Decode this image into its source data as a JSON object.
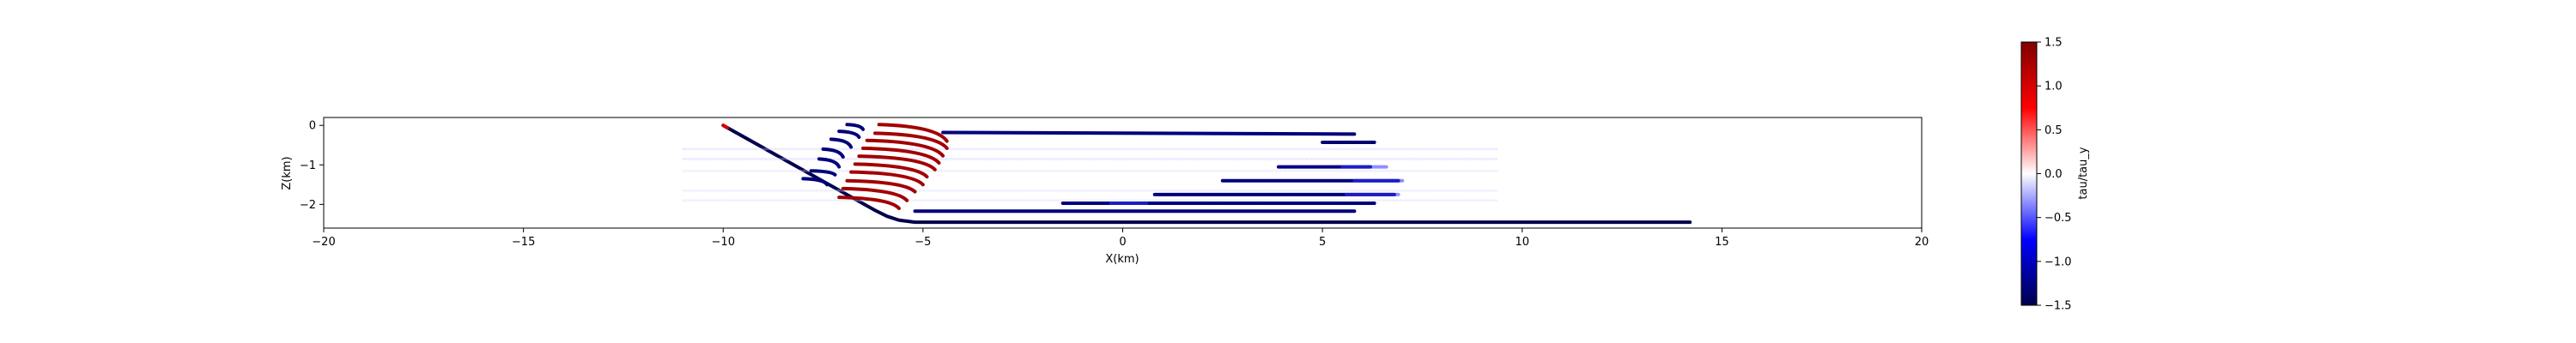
{
  "chart_data": {
    "type": "scatter",
    "title": "",
    "xlabel": "X(km)",
    "ylabel": "Z(km)",
    "xlim": [
      -20,
      20
    ],
    "ylim": [
      -2.6,
      0.2
    ],
    "xticks": [
      -20,
      -15,
      -10,
      -5,
      0,
      5,
      10,
      15,
      20
    ],
    "xtick_labels": [
      "−20",
      "−15",
      "−10",
      "−5",
      "0",
      "5",
      "10",
      "15",
      "20"
    ],
    "yticks": [
      0,
      -1,
      -2
    ],
    "ytick_labels": [
      "0",
      "−1",
      "−2"
    ],
    "grid": false,
    "colorbar": {
      "label": "tau/tau_y",
      "cmap": "seismic",
      "vmin": -1.5,
      "vmax": 1.5,
      "ticks": [
        1.5,
        1.0,
        0.5,
        0.0,
        -0.5,
        -1.0,
        -1.5
      ],
      "tick_labels": [
        "1.5",
        "1.0",
        "0.5",
        "0.0",
        "−0.5",
        "−1.0",
        "−1.5"
      ]
    },
    "series": [
      {
        "kind": "fault",
        "x": [
          -10,
          -6.2,
          -5.9,
          -5.6,
          -5.2,
          14.2
        ],
        "z": [
          0,
          -2.15,
          -2.3,
          -2.4,
          -2.45,
          -2.45
        ],
        "value": -1.5
      },
      {
        "kind": "fault",
        "x": [
          -10,
          -9.9
        ],
        "z": [
          0,
          -0.06
        ],
        "value": 1.0
      },
      {
        "kind": "segment",
        "x": [
          -4.5,
          5.8
        ],
        "z": [
          -0.18,
          -0.22
        ],
        "value": -1.3
      },
      {
        "kind": "segment",
        "x": [
          5.0,
          6.3
        ],
        "z": [
          -0.43,
          -0.43
        ],
        "value": -1.35
      },
      {
        "kind": "segment",
        "x": [
          3.9,
          6.2
        ],
        "z": [
          -1.05,
          -1.05
        ],
        "value": -1.25
      },
      {
        "kind": "segment",
        "x": [
          2.5,
          6.9
        ],
        "z": [
          -1.4,
          -1.4
        ],
        "value": -1.3
      },
      {
        "kind": "segment",
        "x": [
          0.8,
          6.8
        ],
        "z": [
          -1.75,
          -1.75
        ],
        "value": -1.3
      },
      {
        "kind": "segment",
        "x": [
          -1.5,
          6.3
        ],
        "z": [
          -1.97,
          -1.97
        ],
        "value": -1.3
      },
      {
        "kind": "segment",
        "x": [
          -5.2,
          5.8
        ],
        "z": [
          -2.17,
          -2.17
        ],
        "value": -1.3
      },
      {
        "kind": "faint",
        "x": [
          -11.0,
          9.4
        ],
        "z": [
          -0.6,
          -0.6
        ],
        "value": -0.15
      },
      {
        "kind": "faint",
        "x": [
          -11.0,
          9.4
        ],
        "z": [
          -0.85,
          -0.85
        ],
        "value": -0.15
      },
      {
        "kind": "faint",
        "x": [
          -11.0,
          9.4
        ],
        "z": [
          -1.15,
          -1.15
        ],
        "value": -0.12
      },
      {
        "kind": "faint",
        "x": [
          -11.0,
          9.4
        ],
        "z": [
          -1.65,
          -1.65
        ],
        "value": -0.12
      },
      {
        "kind": "faint",
        "x": [
          -11.0,
          9.4
        ],
        "z": [
          -1.9,
          -1.9
        ],
        "value": -0.12
      },
      {
        "kind": "arc",
        "x": [
          -6.9,
          -6.5
        ],
        "z": [
          0.02,
          -0.1
        ],
        "value": -1.3
      },
      {
        "kind": "arc",
        "x": [
          -7.1,
          -6.6
        ],
        "z": [
          -0.15,
          -0.3
        ],
        "value": -1.3
      },
      {
        "kind": "arc",
        "x": [
          -7.3,
          -6.8
        ],
        "z": [
          -0.35,
          -0.55
        ],
        "value": -1.3
      },
      {
        "kind": "arc",
        "x": [
          -7.5,
          -7.0
        ],
        "z": [
          -0.6,
          -0.8
        ],
        "value": -1.3
      },
      {
        "kind": "arc",
        "x": [
          -7.6,
          -7.1
        ],
        "z": [
          -0.85,
          -1.05
        ],
        "value": -1.3
      },
      {
        "kind": "arc",
        "x": [
          -7.8,
          -7.2
        ],
        "z": [
          -1.15,
          -1.25
        ],
        "value": -1.3
      },
      {
        "kind": "arc",
        "x": [
          -8.0,
          -7.4
        ],
        "z": [
          -1.35,
          -1.5
        ],
        "value": -1.3
      },
      {
        "kind": "arc",
        "x": [
          -6.1,
          -4.4
        ],
        "z": [
          0.02,
          -0.4
        ],
        "value": 1.3
      },
      {
        "kind": "arc",
        "x": [
          -6.2,
          -4.4
        ],
        "z": [
          -0.2,
          -0.58
        ],
        "value": 1.3
      },
      {
        "kind": "arc",
        "x": [
          -6.4,
          -4.5
        ],
        "z": [
          -0.38,
          -0.77
        ],
        "value": 1.3
      },
      {
        "kind": "arc",
        "x": [
          -6.5,
          -4.6
        ],
        "z": [
          -0.58,
          -0.95
        ],
        "value": 1.3
      },
      {
        "kind": "arc",
        "x": [
          -6.6,
          -4.7
        ],
        "z": [
          -0.78,
          -1.12
        ],
        "value": 1.3
      },
      {
        "kind": "arc",
        "x": [
          -6.7,
          -4.9
        ],
        "z": [
          -0.98,
          -1.3
        ],
        "value": 1.3
      },
      {
        "kind": "arc",
        "x": [
          -6.8,
          -5.0
        ],
        "z": [
          -1.18,
          -1.5
        ],
        "value": 1.3
      },
      {
        "kind": "arc",
        "x": [
          -6.9,
          -5.2
        ],
        "z": [
          -1.4,
          -1.68
        ],
        "value": 1.3
      },
      {
        "kind": "arc",
        "x": [
          -7.0,
          -5.4
        ],
        "z": [
          -1.6,
          -1.9
        ],
        "value": 1.3
      },
      {
        "kind": "arc",
        "x": [
          -7.1,
          -5.6
        ],
        "z": [
          -1.82,
          -2.1
        ],
        "value": 1.3
      },
      {
        "kind": "blob",
        "x": [
          5.5,
          6.6
        ],
        "z": [
          -1.05,
          -1.05
        ],
        "value": -0.6
      },
      {
        "kind": "blob",
        "x": [
          5.8,
          7.0
        ],
        "z": [
          -1.4,
          -1.4
        ],
        "value": -0.6
      },
      {
        "kind": "blob",
        "x": [
          5.6,
          6.9
        ],
        "z": [
          -1.75,
          -1.75
        ],
        "value": -0.6
      },
      {
        "kind": "blob",
        "x": [
          -0.3,
          0.6
        ],
        "z": [
          -1.97,
          -1.97
        ],
        "value": -0.6
      }
    ]
  }
}
